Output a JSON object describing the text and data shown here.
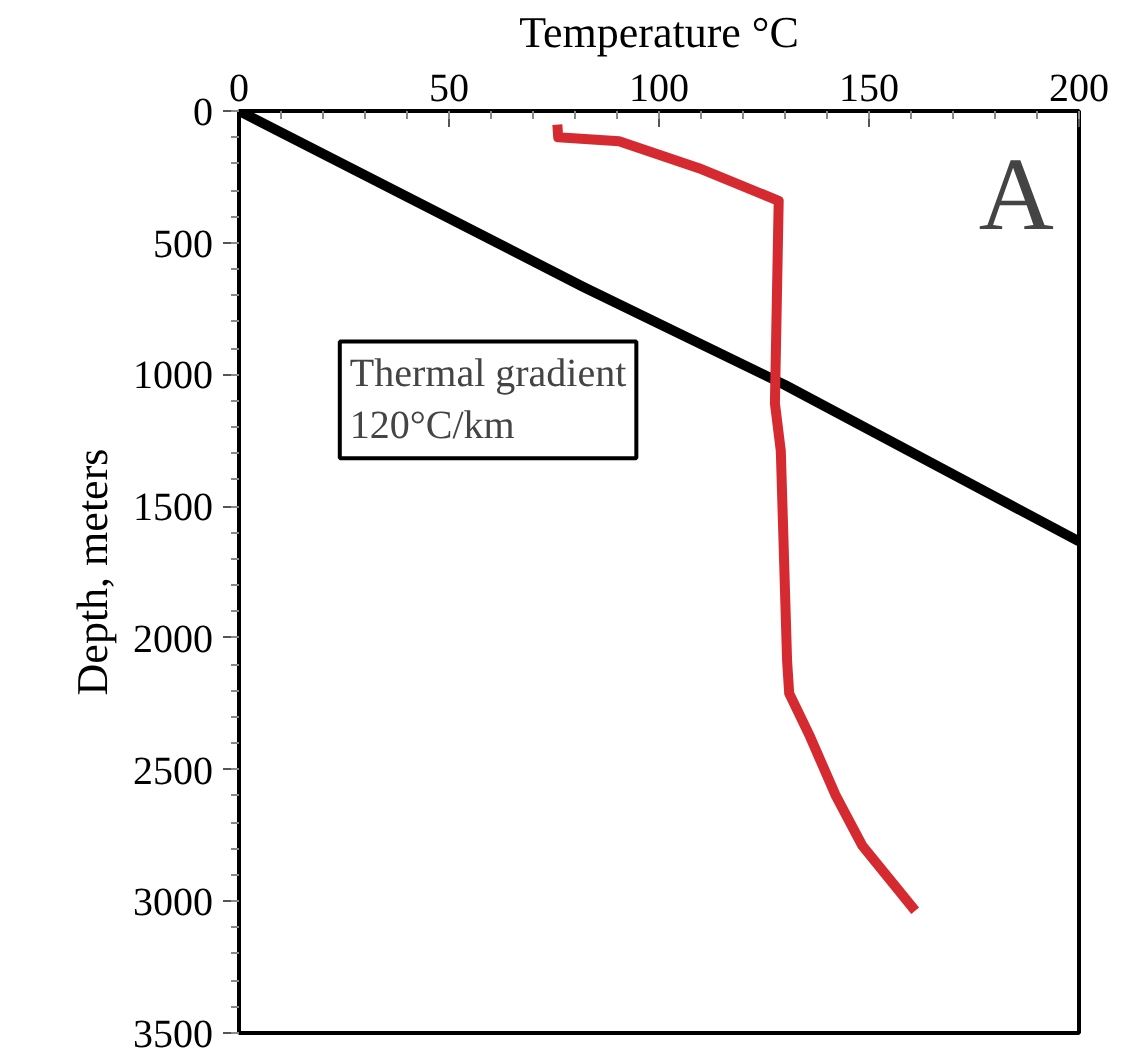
{
  "chart_data": {
    "type": "line",
    "xlabel": "Temperature °C",
    "ylabel": "Depth, meters",
    "xlim": [
      0,
      200
    ],
    "xticks": [
      0,
      50,
      100,
      150,
      200
    ],
    "ylim": [
      3500,
      0
    ],
    "yticks": [
      0,
      500,
      1000,
      1500,
      2000,
      2500,
      3000,
      3500
    ],
    "grid": false,
    "line_style": "solid",
    "marker": "none",
    "series": [
      {
        "color": "#000000",
        "x": [
          0,
          82,
          130,
          200
        ],
        "values": [
          0,
          668,
          1040,
          1634
        ]
      },
      {
        "color": "#d42a30",
        "x": [
          75.8,
          76,
          90.5,
          109.5,
          128.5,
          127.6,
          129,
          130.5,
          131,
          136,
          142,
          148.4,
          161
        ],
        "values": [
          52,
          100,
          115,
          217,
          341,
          1110,
          1290,
          2088,
          2211,
          2376,
          2596,
          2789,
          3036
        ]
      }
    ],
    "annotations": [
      "Thermal gradient\n120°C/km",
      "A"
    ]
  }
}
